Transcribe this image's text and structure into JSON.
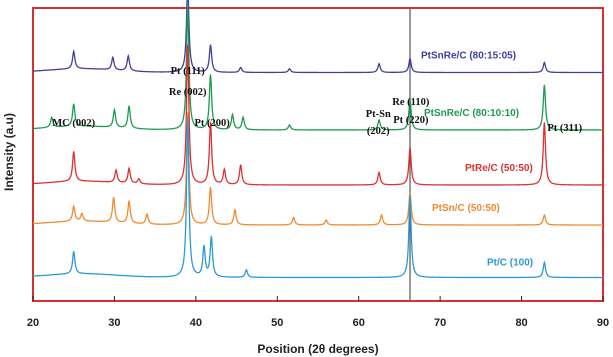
{
  "chart_data": {
    "type": "line",
    "xlabel": "Position (2θ degrees)",
    "ylabel": "Intensity (a.u)",
    "xlim": [
      20,
      90
    ],
    "x_ticks": [
      20,
      30,
      40,
      50,
      60,
      70,
      80,
      90
    ],
    "reference_line_x": 66.3,
    "series": [
      {
        "name": "PtSnRe/C (80:15:05)",
        "color": "#3f3fa0",
        "baseline": 0.87,
        "peaks": [
          [
            25.0,
            0.07
          ],
          [
            29.8,
            0.05
          ],
          [
            31.7,
            0.06
          ],
          [
            39.0,
            0.36
          ],
          [
            41.8,
            0.11
          ],
          [
            45.5,
            0.02
          ],
          [
            51.5,
            0.015
          ],
          [
            62.5,
            0.035
          ],
          [
            66.3,
            0.055
          ],
          [
            82.8,
            0.04
          ]
        ]
      },
      {
        "name": "PtSnRe/C (80:10:10)",
        "color": "#1e9b50",
        "baseline": 0.64,
        "peaks": [
          [
            22.3,
            0.04
          ],
          [
            25.0,
            0.09
          ],
          [
            30.0,
            0.07
          ],
          [
            31.8,
            0.09
          ],
          [
            39.0,
            0.5
          ],
          [
            41.8,
            0.22
          ],
          [
            44.5,
            0.06
          ],
          [
            45.8,
            0.05
          ],
          [
            51.5,
            0.02
          ],
          [
            62.5,
            0.04
          ],
          [
            66.3,
            0.12
          ],
          [
            82.8,
            0.18
          ]
        ]
      },
      {
        "name": "PtRe/C (50:50)",
        "color": "#e03030",
        "baseline": 0.42,
        "peaks": [
          [
            25.0,
            0.12
          ],
          [
            30.2,
            0.05
          ],
          [
            31.8,
            0.06
          ],
          [
            33.0,
            0.02
          ],
          [
            39.0,
            0.56
          ],
          [
            41.8,
            0.25
          ],
          [
            43.5,
            0.06
          ],
          [
            45.5,
            0.08
          ],
          [
            62.5,
            0.05
          ],
          [
            66.3,
            0.15
          ],
          [
            82.8,
            0.25
          ]
        ]
      },
      {
        "name": "PtSn/C (50:50)",
        "color": "#f08a30",
        "baseline": 0.26,
        "peaks": [
          [
            25.0,
            0.06
          ],
          [
            26.0,
            0.03
          ],
          [
            29.9,
            0.1
          ],
          [
            31.8,
            0.09
          ],
          [
            34.0,
            0.04
          ],
          [
            39.0,
            0.45
          ],
          [
            41.8,
            0.15
          ],
          [
            44.8,
            0.06
          ],
          [
            52.0,
            0.03
          ],
          [
            56.0,
            0.02
          ],
          [
            62.8,
            0.04
          ],
          [
            66.3,
            0.13
          ],
          [
            82.8,
            0.04
          ]
        ]
      },
      {
        "name": "Pt/C (100)",
        "color": "#2a9ad6",
        "baseline": 0.05,
        "peaks": [
          [
            25.0,
            0.09
          ],
          [
            39.0,
            0.64
          ],
          [
            41.0,
            0.12
          ],
          [
            41.9,
            0.16
          ],
          [
            46.2,
            0.03
          ],
          [
            66.3,
            0.33
          ],
          [
            82.8,
            0.06
          ]
        ]
      }
    ],
    "annotations": [
      {
        "text": "MC (002)",
        "x": 25.0
      },
      {
        "text": "Pt (111)",
        "x": 39.0
      },
      {
        "text": "Re (002)",
        "x": 39.0
      },
      {
        "text": "Pt (200)",
        "x": 42.0
      },
      {
        "text": "Pt-Sn",
        "x": 62.4
      },
      {
        "text": "(202)",
        "x": 62.4
      },
      {
        "text": "Re (110)",
        "x": 66.4
      },
      {
        "text": "Pt (220)",
        "x": 66.4
      },
      {
        "text": "Pt (311)",
        "x": 85.3
      }
    ]
  }
}
